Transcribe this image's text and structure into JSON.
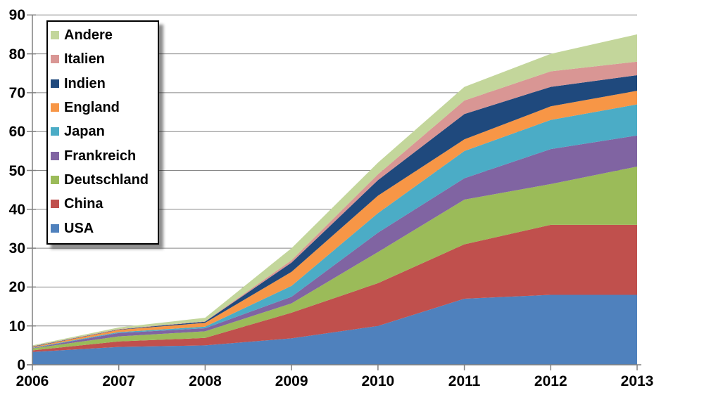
{
  "chart_data": {
    "type": "area",
    "stacked": true,
    "title": "",
    "xlabel": "",
    "ylabel": "",
    "x_categories": [
      "2006",
      "2007",
      "2008",
      "2009",
      "2010",
      "2011",
      "2012",
      "2013"
    ],
    "ylim": [
      0,
      90
    ],
    "ytick_labels": [
      "0",
      "10",
      "20",
      "30",
      "40",
      "50",
      "60",
      "70",
      "80",
      "90"
    ],
    "grid": true,
    "legend_position": "top-left",
    "legend_order_top_to_bottom": [
      "Andere",
      "Italien",
      "Indien",
      "England",
      "Japan",
      "Frankreich",
      "Deutschland",
      "China",
      "USA"
    ],
    "series": [
      {
        "key": "usa",
        "label": "USA",
        "color": "#4F81BD",
        "values": [
          3.3,
          4.6,
          5.0,
          6.8,
          10.0,
          17.0,
          18.0,
          18.0
        ]
      },
      {
        "key": "china",
        "label": "China",
        "color": "#C0504D",
        "values": [
          0.4,
          1.4,
          1.9,
          6.6,
          11.0,
          14.0,
          18.0,
          18.0
        ]
      },
      {
        "key": "deutschland",
        "label": "Deutschland",
        "color": "#9BBB59",
        "values": [
          0.5,
          1.3,
          1.7,
          2.4,
          8.0,
          11.5,
          10.5,
          15.0
        ]
      },
      {
        "key": "frankreich",
        "label": "Frankreich",
        "color": "#8064A2",
        "values": [
          0.1,
          0.9,
          0.8,
          1.7,
          5.0,
          5.5,
          9.0,
          8.0
        ]
      },
      {
        "key": "japan",
        "label": "Japan",
        "color": "#4BACC6",
        "values": [
          0.1,
          0.2,
          0.4,
          2.8,
          5.0,
          7.0,
          7.5,
          8.0
        ]
      },
      {
        "key": "england",
        "label": "England",
        "color": "#F79646",
        "values": [
          0.2,
          0.6,
          1.0,
          3.6,
          4.5,
          3.0,
          3.5,
          3.5
        ]
      },
      {
        "key": "indien",
        "label": "Indien",
        "color": "#1F497D",
        "values": [
          0.1,
          0.1,
          0.3,
          2.4,
          4.0,
          6.5,
          5.0,
          4.0
        ]
      },
      {
        "key": "italien",
        "label": "Italien",
        "color": "#D99694",
        "values": [
          0.1,
          0.1,
          0.1,
          0.6,
          1.5,
          3.5,
          4.0,
          3.5
        ]
      },
      {
        "key": "andere",
        "label": "Andere",
        "color": "#C3D69B",
        "values": [
          0.2,
          0.4,
          0.9,
          3.1,
          3.0,
          3.5,
          4.5,
          7.0
        ]
      }
    ],
    "colors": {
      "background": "#FFFFFF",
      "gridline": "#878787",
      "axis": "#808080",
      "text": "#000000"
    }
  }
}
